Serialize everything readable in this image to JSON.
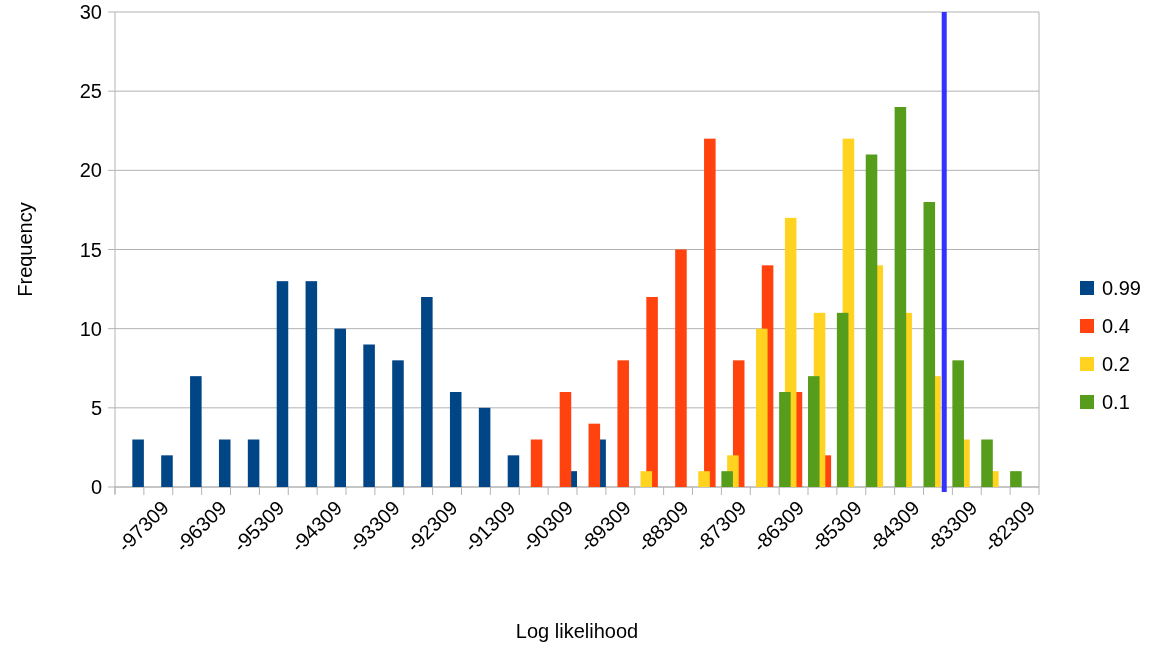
{
  "chart_data": {
    "type": "bar",
    "xlabel": "Log likelihood",
    "ylabel": "Frequency",
    "xlim": [
      -97809,
      -81809
    ],
    "xticks": [
      {
        "value": -97809,
        "label": null
      },
      -97309,
      {
        "value": -96809,
        "label": null
      },
      -96309,
      {
        "value": -95809,
        "label": null
      },
      -95309,
      {
        "value": -94809,
        "label": null
      },
      -94309,
      {
        "value": -93809,
        "label": null
      },
      -93309,
      {
        "value": -92809,
        "label": null
      },
      -92309,
      {
        "value": -91809,
        "label": null
      },
      -91309,
      {
        "value": -90809,
        "label": null
      },
      -90309,
      {
        "value": -89809,
        "label": null
      },
      -89309,
      {
        "value": -88809,
        "label": null
      },
      -88309,
      {
        "value": -87809,
        "label": null
      },
      -87309,
      {
        "value": -86809,
        "label": null
      },
      -86309,
      {
        "value": -85809,
        "label": null
      },
      -85309,
      {
        "value": -84809,
        "label": null
      },
      -84309,
      {
        "value": -83809,
        "label": null
      },
      -83309,
      {
        "value": -82809,
        "label": null
      },
      -82309,
      {
        "value": -81809,
        "label": null
      }
    ],
    "ylim": [
      0,
      30
    ],
    "yticks": [
      0,
      5,
      10,
      15,
      20,
      25,
      30
    ],
    "grid": "y",
    "legend": "right",
    "series": [
      {
        "name": "0.99",
        "color": "#004586",
        "x": [
          -97409,
          -96909,
          -96409,
          -95909,
          -95409,
          -94909,
          -94409,
          -93909,
          -93409,
          -92909,
          -92409,
          -91909,
          -91409,
          -90909,
          -89909,
          -89409
        ],
        "values": [
          3,
          2,
          7,
          3,
          3,
          13,
          13,
          10,
          9,
          8,
          12,
          6,
          5,
          2,
          1,
          3
        ]
      },
      {
        "name": "0.4",
        "color": "#ff420e",
        "x": [
          -90509,
          -90009,
          -89509,
          -89009,
          -88509,
          -88009,
          -87509,
          -87009,
          -86509,
          -86009,
          -85509
        ],
        "values": [
          3,
          6,
          4,
          8,
          12,
          15,
          22,
          8,
          14,
          6,
          2
        ]
      },
      {
        "name": "0.2",
        "color": "#ffd320",
        "x": [
          -88609,
          -87609,
          -87109,
          -86609,
          -86109,
          -85609,
          -85109,
          -84609,
          -84109,
          -83609,
          -83109,
          -82609
        ],
        "values": [
          1,
          1,
          2,
          10,
          17,
          11,
          22,
          14,
          11,
          7,
          3,
          1
        ]
      },
      {
        "name": "0.1",
        "color": "#579d1c",
        "x": [
          -87209,
          -86209,
          -85709,
          -85209,
          -84709,
          -84209,
          -83709,
          -83209,
          -82709,
          -82209
        ],
        "values": [
          1,
          6,
          7,
          11,
          21,
          24,
          18,
          8,
          3,
          1
        ]
      }
    ],
    "ref_lines": [
      {
        "axis": "x",
        "value": -83450,
        "color": "#3333ff"
      }
    ]
  }
}
